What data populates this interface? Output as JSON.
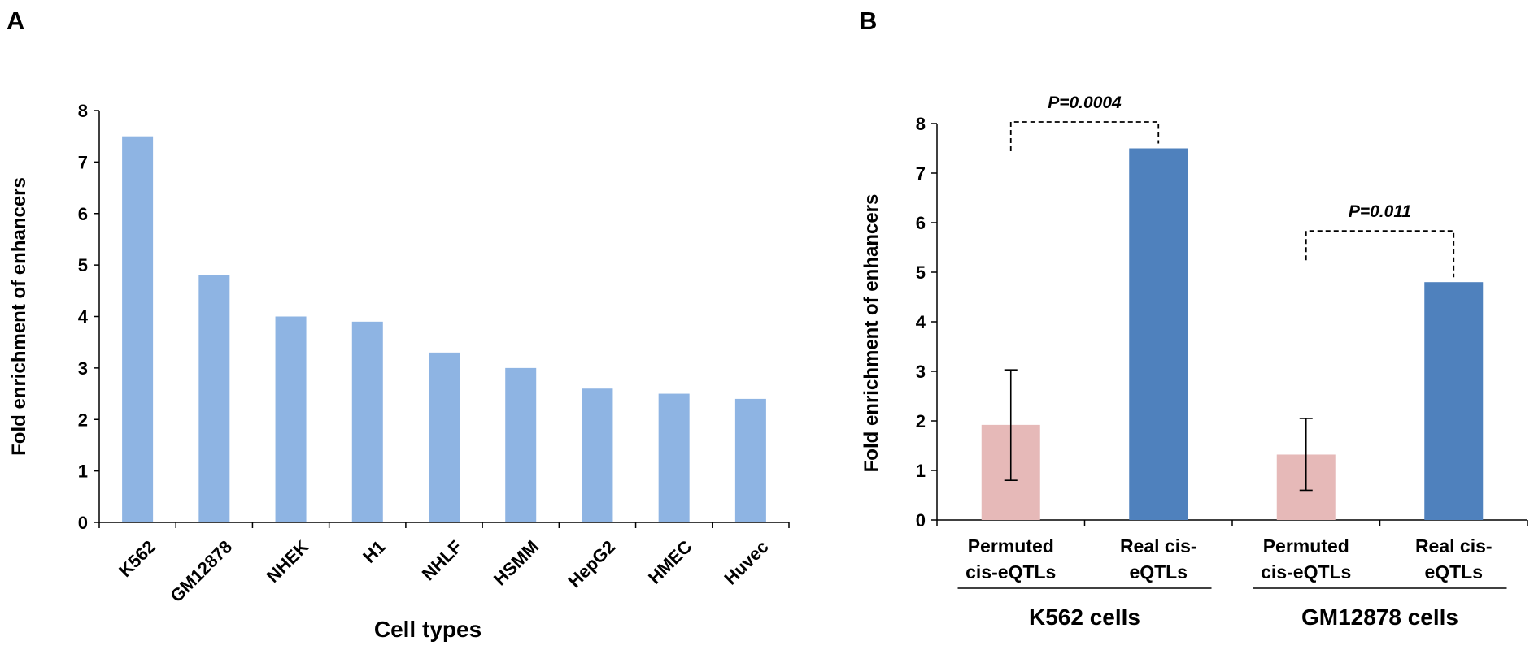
{
  "panels": {
    "a_label": "A",
    "b_label": "B"
  },
  "colors": {
    "bar_light_blue": "#8EB4E3",
    "bar_pink": "#E6B9B8",
    "bar_blue": "#4F81BD",
    "axis": "#000000"
  },
  "chart_data": [
    {
      "panel": "A",
      "type": "bar",
      "xlabel": "Cell types",
      "ylabel": "Fold enrichment of enhancers",
      "ylim": [
        0,
        8
      ],
      "yticks": [
        0,
        1,
        2,
        3,
        4,
        5,
        6,
        7,
        8
      ],
      "grid": false,
      "categories": [
        "K562",
        "GM12878",
        "NHEK",
        "H1",
        "NHLF",
        "HSMM",
        "HepG2",
        "HMEC",
        "Huvec"
      ],
      "values": [
        7.5,
        4.8,
        4.0,
        3.9,
        3.3,
        3.0,
        2.6,
        2.5,
        2.4
      ]
    },
    {
      "panel": "B",
      "type": "bar",
      "xlabel": "",
      "ylabel": "Fold enrichment of enhancers",
      "ylim": [
        0,
        8
      ],
      "yticks": [
        0,
        1,
        2,
        3,
        4,
        5,
        6,
        7,
        8
      ],
      "grid": false,
      "categories": [
        {
          "line1": "Permuted",
          "line2": "cis-eQTLs"
        },
        {
          "line1": "Real cis-",
          "line2": "eQTLs"
        },
        {
          "line1": "Permuted",
          "line2": "cis-eQTLs"
        },
        {
          "line1": "Real cis-",
          "line2": "eQTLs"
        }
      ],
      "values": [
        1.92,
        7.5,
        1.32,
        4.8
      ],
      "error_low": [
        0.8,
        null,
        0.6,
        null
      ],
      "error_high": [
        3.03,
        null,
        2.05,
        null
      ],
      "bar_colors": [
        "#E6B9B8",
        "#4F81BD",
        "#E6B9B8",
        "#4F81BD"
      ],
      "groups": [
        {
          "name": "K562 cells",
          "members": [
            0,
            1
          ]
        },
        {
          "name": "GM12878 cells",
          "members": [
            2,
            3
          ]
        }
      ],
      "annotations": [
        {
          "text": "P=0.0004",
          "from": 0,
          "to": 1,
          "level": 8.0
        },
        {
          "text": "P=0.011",
          "from": 2,
          "to": 3,
          "level": 5.8
        }
      ]
    }
  ]
}
